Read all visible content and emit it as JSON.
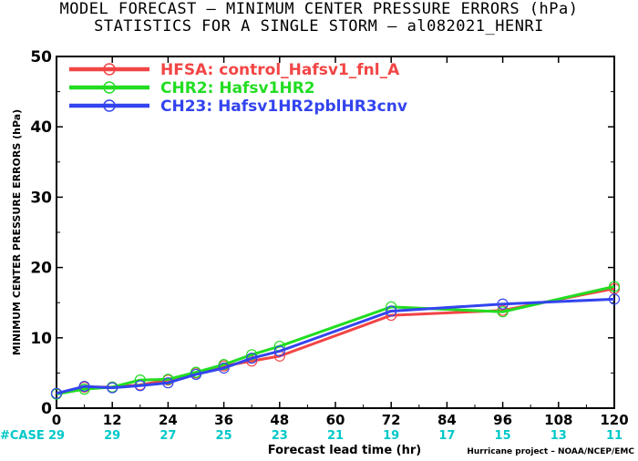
{
  "chart_data": {
    "type": "line",
    "title_line1": "MODEL FORECAST – MINIMUM CENTER PRESSURE ERRORS (hPa)",
    "title_line2": "STATISTICS FOR A SINGLE STORM – al082021_HENRI",
    "xlabel": "Forecast lead time (hr)",
    "ylabel": "MINIMUM CENTER PRESSURE ERRORS (hPa)",
    "xlim": [
      0,
      120
    ],
    "ylim": [
      0,
      50
    ],
    "x_ticks": [
      0,
      12,
      24,
      36,
      48,
      60,
      72,
      84,
      96,
      108,
      120
    ],
    "y_ticks": [
      0,
      10,
      20,
      30,
      40,
      50
    ],
    "case_label": "#CASE",
    "cases": [
      29,
      29,
      27,
      25,
      23,
      21,
      19,
      17,
      15,
      13,
      11
    ],
    "legend_position": "top-left",
    "grid": false,
    "credit": "Hurricane project – NOAA/NCEP/EMC",
    "series": [
      {
        "name": "HFSA: control_Hafsv1_fnl_A",
        "color": "#f24545",
        "x": [
          0,
          6,
          12,
          18,
          24,
          30,
          36,
          42,
          48,
          72,
          96,
          120
        ],
        "y": [
          2.1,
          3.0,
          3.0,
          3.3,
          4.0,
          5.0,
          6.0,
          6.7,
          7.4,
          13.2,
          13.9,
          17.0
        ]
      },
      {
        "name": "CHR2: Hafsv1HR2",
        "color": "#22dd22",
        "x": [
          0,
          6,
          12,
          18,
          24,
          30,
          36,
          42,
          48,
          72,
          96,
          120
        ],
        "y": [
          2.0,
          2.7,
          3.0,
          4.0,
          4.1,
          5.1,
          6.2,
          7.6,
          8.8,
          14.4,
          13.7,
          17.3
        ]
      },
      {
        "name": "CH23: Hafsv1HR2pblHR3cnv",
        "color": "#3344ee",
        "x": [
          0,
          6,
          12,
          18,
          24,
          30,
          36,
          42,
          48,
          72,
          96,
          120
        ],
        "y": [
          2.1,
          3.1,
          2.9,
          3.2,
          3.6,
          4.8,
          5.7,
          7.1,
          8.1,
          13.8,
          14.8,
          15.5
        ]
      }
    ]
  }
}
